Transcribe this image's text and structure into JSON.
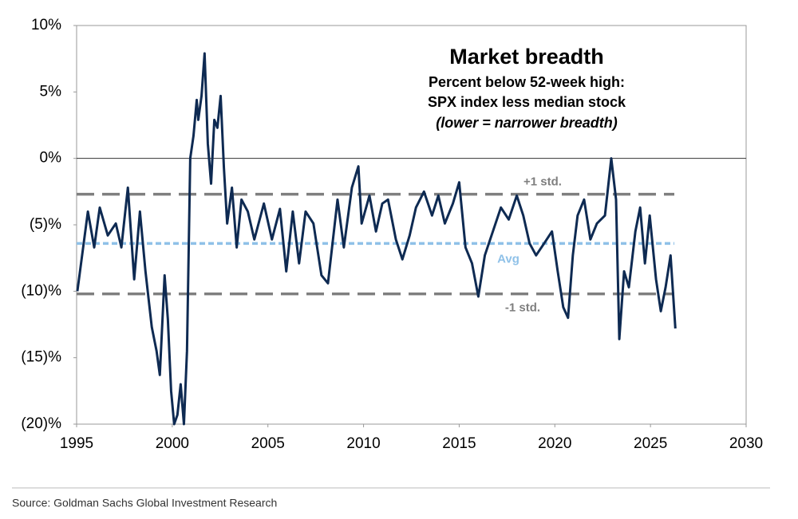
{
  "chart_data": {
    "type": "line",
    "title": "Market breadth",
    "subtitle": [
      "Percent below 52-week high:",
      "SPX index less median stock",
      "(lower = narrower breadth)"
    ],
    "source": "Source: Goldman Sachs Global Investment Research",
    "color": "#0e2a52",
    "xlim": [
      1995,
      2030
    ],
    "xticks": [
      1995,
      2000,
      2005,
      2010,
      2015,
      2020,
      2025,
      2030
    ],
    "ylim": [
      -20,
      10
    ],
    "yticks": [
      {
        "value": -20,
        "label": "(20)%"
      },
      {
        "value": -15,
        "label": "(15)%"
      },
      {
        "value": -10,
        "label": "(10)%"
      },
      {
        "value": -5,
        "label": "(5)%"
      },
      {
        "value": 0,
        "label": "0%"
      },
      {
        "value": 5,
        "label": "5%"
      },
      {
        "value": 10,
        "label": "10%"
      }
    ],
    "reference_lines": [
      {
        "label": "+1 std.",
        "value": -2.7,
        "color": "#7f7f7f",
        "dash": "dashed"
      },
      {
        "label": "Avg",
        "value": -6.4,
        "color": "#8fc1e8",
        "dash": "dotted"
      },
      {
        "label": "-1 std.",
        "value": -10.2,
        "color": "#7f7f7f",
        "dash": "dashed"
      }
    ],
    "x": [
      1995.04,
      1995.59,
      1995.92,
      1996.21,
      1996.63,
      1997.05,
      1997.34,
      1997.68,
      1998.01,
      1998.31,
      1998.6,
      1998.93,
      1999.18,
      1999.35,
      1999.6,
      1999.77,
      1999.94,
      2000.1,
      2000.27,
      2000.44,
      2000.61,
      2000.77,
      2000.94,
      2001.11,
      2001.28,
      2001.36,
      2001.53,
      2001.69,
      2001.86,
      2002.03,
      2002.2,
      2002.36,
      2002.53,
      2002.7,
      2002.87,
      2003.12,
      2003.37,
      2003.62,
      2003.95,
      2004.29,
      2004.79,
      2005.21,
      2005.63,
      2005.96,
      2006.3,
      2006.63,
      2006.97,
      2007.38,
      2007.8,
      2008.14,
      2008.64,
      2008.97,
      2009.39,
      2009.73,
      2009.9,
      2010.31,
      2010.65,
      2010.98,
      2011.28,
      2011.69,
      2012.03,
      2012.41,
      2012.74,
      2013.16,
      2013.58,
      2013.91,
      2014.25,
      2014.67,
      2015.0,
      2015.33,
      2015.67,
      2016.0,
      2016.34,
      2016.76,
      2017.18,
      2017.59,
      2018.01,
      2018.35,
      2018.68,
      2019.02,
      2019.44,
      2019.85,
      2020.15,
      2020.44,
      2020.69,
      2020.94,
      2021.19,
      2021.53,
      2021.86,
      2022.2,
      2022.62,
      2022.95,
      2023.2,
      2023.37,
      2023.62,
      2023.87,
      2024.21,
      2024.46,
      2024.71,
      2024.96,
      2025.29,
      2025.54,
      2025.79,
      2026.05,
      2026.3
    ],
    "values": [
      -10.0,
      -4.0,
      -6.7,
      -3.7,
      -5.8,
      -4.9,
      -6.7,
      -2.2,
      -9.1,
      -4.0,
      -8.5,
      -12.7,
      -14.5,
      -16.3,
      -8.8,
      -12.1,
      -17.5,
      -20,
      -19.3,
      -17,
      -20,
      -14.5,
      0,
      1.7,
      4.4,
      2.9,
      4.7,
      7.9,
      1.1,
      -1.9,
      2.9,
      2.3,
      4.7,
      -0.7,
      -4.9,
      -2.2,
      -6.7,
      -3.1,
      -4.0,
      -6.1,
      -3.4,
      -6.1,
      -3.8,
      -8.5,
      -4.0,
      -7.9,
      -4.0,
      -4.9,
      -8.8,
      -9.4,
      -3.1,
      -6.7,
      -2.2,
      -0.6,
      -4.9,
      -2.8,
      -5.5,
      -3.4,
      -3.1,
      -6.1,
      -7.6,
      -5.8,
      -3.7,
      -2.5,
      -4.3,
      -2.8,
      -4.9,
      -3.4,
      -1.8,
      -6.7,
      -7.9,
      -10.4,
      -7.3,
      -5.5,
      -3.7,
      -4.6,
      -2.8,
      -4.3,
      -6.4,
      -7.3,
      -6.4,
      -5.5,
      -8.5,
      -11.2,
      -12.0,
      -7.3,
      -4.3,
      -3.1,
      -6.1,
      -4.9,
      -4.3,
      0,
      -3.1,
      -13.6,
      -8.5,
      -9.7,
      -5.5,
      -3.7,
      -7.9,
      -4.3,
      -9.1,
      -11.5,
      -9.7,
      -7.3,
      -12.8
    ]
  }
}
